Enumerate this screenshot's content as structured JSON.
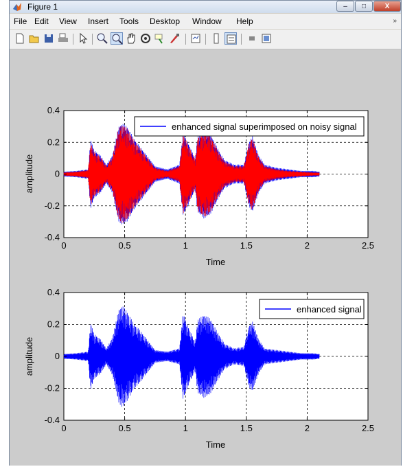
{
  "window": {
    "title": "Figure 1",
    "controls": {
      "minimize": "–",
      "maximize": "□",
      "close": "X"
    },
    "menu": [
      "File",
      "Edit",
      "View",
      "Insert",
      "Tools",
      "Desktop",
      "Window",
      "Help"
    ],
    "menu_overflow": "»",
    "toolbar_icons": [
      "new-figure-icon",
      "open-file-icon",
      "save-icon",
      "print-icon",
      "edit-plot-arrow-icon",
      "zoom-in-icon",
      "zoom-out-icon",
      "pan-hand-icon",
      "rotate-3d-icon",
      "data-cursor-icon",
      "brush-icon",
      "link-plot-icon",
      "colorbar-icon",
      "legend-icon",
      "hide-plot-tools-icon",
      "show-plot-tools-icon"
    ]
  },
  "colors": {
    "noisy": "#ff0000",
    "enhanced": "#0000ff",
    "axes_bg": "#ffffff",
    "figure_bg": "#cccccc"
  },
  "chart_data": [
    {
      "type": "line",
      "title": "",
      "xlabel": "Time",
      "ylabel": "amplitude",
      "xlim": [
        0,
        2.5
      ],
      "ylim": [
        -0.4,
        0.4
      ],
      "xticks": [
        "0",
        "0.5",
        "1",
        "1.5",
        "2",
        "2.5"
      ],
      "yticks": [
        "0.4",
        "0.2",
        "0",
        "-0.2",
        "-0.4"
      ],
      "grid": true,
      "legend": {
        "position": "top-right",
        "entries": [
          "enhanced signal superimposed on noisy signal"
        ]
      },
      "series": [
        {
          "name": "enhanced signal superimposed on noisy signal",
          "color": "#0000ff",
          "envelope": {
            "t": [
              0,
              0.1,
              0.2,
              0.22,
              0.25,
              0.3,
              0.35,
              0.4,
              0.45,
              0.48,
              0.52,
              0.58,
              0.62,
              0.7,
              0.75,
              0.85,
              0.95,
              0.98,
              1.02,
              1.08,
              1.1,
              1.15,
              1.2,
              1.28,
              1.32,
              1.4,
              1.48,
              1.52,
              1.55,
              1.6,
              1.65,
              1.75,
              1.85,
              1.95,
              2.05,
              2.1
            ],
            "amp": [
              0.015,
              0.02,
              0.03,
              0.22,
              0.15,
              0.12,
              0.06,
              0.12,
              0.3,
              0.32,
              0.3,
              0.22,
              0.18,
              0.1,
              0.05,
              0.03,
              0.06,
              0.26,
              0.2,
              0.1,
              0.24,
              0.28,
              0.26,
              0.14,
              0.09,
              0.06,
              0.06,
              0.2,
              0.24,
              0.12,
              0.06,
              0.04,
              0.03,
              0.02,
              0.02,
              0.015
            ]
          }
        },
        {
          "name": "",
          "color": "#ff0000",
          "envelope": {
            "t": [
              0,
              0.1,
              0.2,
              0.22,
              0.25,
              0.3,
              0.35,
              0.4,
              0.45,
              0.48,
              0.52,
              0.58,
              0.62,
              0.7,
              0.75,
              0.85,
              0.95,
              0.98,
              1.02,
              1.08,
              1.1,
              1.15,
              1.2,
              1.28,
              1.32,
              1.4,
              1.48,
              1.52,
              1.55,
              1.6,
              1.65,
              1.75,
              1.85,
              1.95,
              2.05,
              2.1
            ],
            "amp": [
              0.01,
              0.015,
              0.025,
              0.2,
              0.14,
              0.11,
              0.05,
              0.11,
              0.29,
              0.31,
              0.29,
              0.21,
              0.17,
              0.09,
              0.04,
              0.02,
              0.05,
              0.25,
              0.19,
              0.09,
              0.23,
              0.27,
              0.25,
              0.13,
              0.08,
              0.05,
              0.05,
              0.19,
              0.23,
              0.11,
              0.05,
              0.03,
              0.02,
              0.015,
              0.01,
              0.01
            ]
          }
        }
      ]
    },
    {
      "type": "line",
      "title": "",
      "xlabel": "Time",
      "ylabel": "amplitude",
      "xlim": [
        0,
        2.5
      ],
      "ylim": [
        -0.4,
        0.4
      ],
      "xticks": [
        "0",
        "0.5",
        "1",
        "1.5",
        "2",
        "2.5"
      ],
      "yticks": [
        "0.4",
        "0.2",
        "0",
        "-0.2",
        "-0.4"
      ],
      "grid": true,
      "legend": {
        "position": "top-right",
        "entries": [
          "enhanced signal"
        ]
      },
      "series": [
        {
          "name": "enhanced signal",
          "color": "#0000ff",
          "envelope": {
            "t": [
              0,
              0.1,
              0.2,
              0.22,
              0.25,
              0.3,
              0.35,
              0.4,
              0.45,
              0.48,
              0.52,
              0.58,
              0.62,
              0.7,
              0.75,
              0.85,
              0.95,
              0.98,
              1.02,
              1.08,
              1.1,
              1.15,
              1.2,
              1.28,
              1.32,
              1.4,
              1.48,
              1.52,
              1.55,
              1.6,
              1.65,
              1.75,
              1.85,
              1.95,
              2.05,
              2.1
            ],
            "amp": [
              0.015,
              0.02,
              0.03,
              0.21,
              0.14,
              0.11,
              0.05,
              0.12,
              0.29,
              0.32,
              0.28,
              0.2,
              0.17,
              0.09,
              0.04,
              0.03,
              0.05,
              0.27,
              0.19,
              0.09,
              0.23,
              0.26,
              0.24,
              0.13,
              0.08,
              0.05,
              0.06,
              0.19,
              0.22,
              0.11,
              0.05,
              0.04,
              0.03,
              0.02,
              0.02,
              0.015
            ]
          }
        }
      ]
    }
  ]
}
